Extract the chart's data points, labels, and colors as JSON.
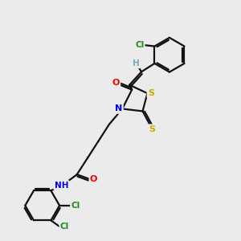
{
  "background_color": "#ebebeb",
  "atom_colors": {
    "C": "#000000",
    "H": "#7ab",
    "N": "#0000ee",
    "O": "#ee0000",
    "S": "#ccaa00",
    "Cl": "#228822"
  },
  "bond_color": "#111111",
  "bond_width": 1.6,
  "figsize": [
    3.0,
    3.0
  ],
  "dpi": 100
}
